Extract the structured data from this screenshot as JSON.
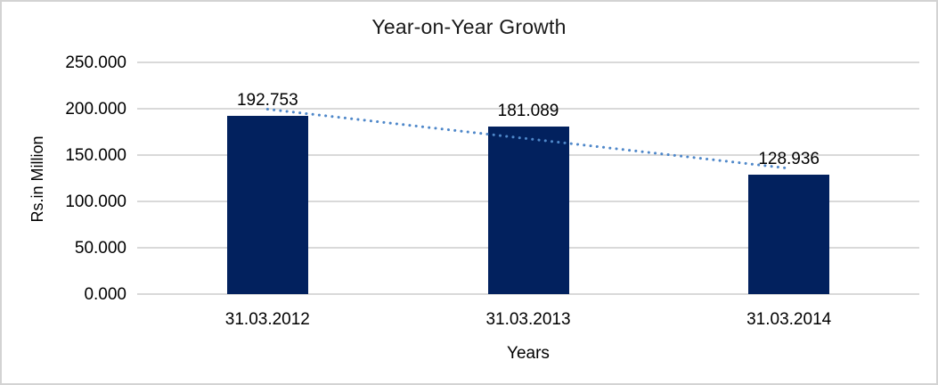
{
  "chart_data": {
    "type": "bar",
    "title": "Year-on-Year Growth",
    "xlabel": "Years",
    "ylabel": "Rs.in Million",
    "categories": [
      "31.03.2012",
      "31.03.2013",
      "31.03.2014"
    ],
    "values": [
      192.753,
      181.089,
      128.936
    ],
    "data_labels": [
      "192.753",
      "181.089",
      "128.936"
    ],
    "yticks": [
      "0.000",
      "50.000",
      "100.000",
      "150.000",
      "200.000",
      "250.000"
    ],
    "ytick_step": 50,
    "ylim": [
      0,
      250
    ],
    "grid": true,
    "legend": false,
    "bar_color": "#02215E",
    "trendline": {
      "type": "linear",
      "style": "dotted",
      "color": "#4E87C9"
    }
  }
}
